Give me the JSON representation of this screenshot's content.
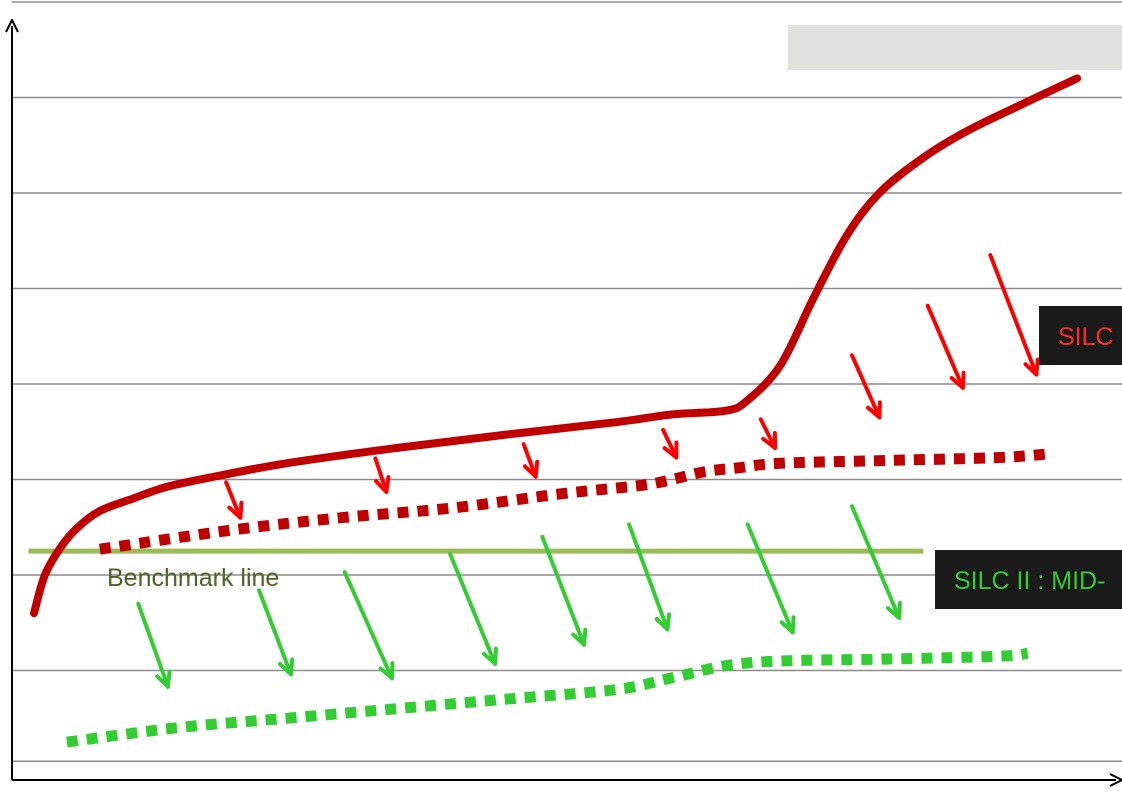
{
  "chart_data": {
    "type": "line",
    "title": "",
    "xlabel": "",
    "ylabel": "",
    "xlim": [
      0,
      100
    ],
    "ylim": [
      0,
      8
    ],
    "grid": true,
    "gridlines_y": [
      0.05,
      1,
      2,
      3,
      4,
      5,
      6,
      7,
      8
    ],
    "benchmark": {
      "label": "Benchmark line",
      "value": 2.25,
      "x_range": [
        1.5,
        83
      ],
      "color": "#9bbb59"
    },
    "series": [
      {
        "name": "",
        "style": "solid",
        "color": "#c00000",
        "points": [
          [
            2,
            1.6
          ],
          [
            3,
            2.0
          ],
          [
            4.5,
            2.3
          ],
          [
            6,
            2.5
          ],
          [
            8,
            2.67
          ],
          [
            11,
            2.8
          ],
          [
            14,
            2.92
          ],
          [
            18,
            3.02
          ],
          [
            25,
            3.17
          ],
          [
            35,
            3.33
          ],
          [
            45,
            3.47
          ],
          [
            55,
            3.6
          ],
          [
            60,
            3.68
          ],
          [
            65,
            3.72
          ],
          [
            67,
            3.83
          ],
          [
            70,
            4.2
          ],
          [
            73,
            4.9
          ],
          [
            76,
            5.55
          ],
          [
            79,
            6.0
          ],
          [
            83,
            6.37
          ],
          [
            87,
            6.65
          ],
          [
            92,
            6.93
          ],
          [
            97,
            7.2
          ]
        ]
      },
      {
        "name": "",
        "style": "dotted",
        "color": "#c00000",
        "points": [
          [
            8,
            2.27
          ],
          [
            20,
            2.47
          ],
          [
            30,
            2.6
          ],
          [
            40,
            2.7
          ],
          [
            50,
            2.85
          ],
          [
            58,
            2.95
          ],
          [
            63,
            3.08
          ],
          [
            66,
            3.12
          ],
          [
            70,
            3.17
          ],
          [
            80,
            3.2
          ],
          [
            90,
            3.23
          ],
          [
            94.5,
            3.27
          ]
        ]
      },
      {
        "name": "",
        "style": "dotted",
        "color": "#33cc33",
        "points": [
          [
            5,
            0.25
          ],
          [
            15,
            0.4
          ],
          [
            25,
            0.5
          ],
          [
            35,
            0.6
          ],
          [
            45,
            0.7
          ],
          [
            55,
            0.8
          ],
          [
            60,
            0.92
          ],
          [
            65,
            1.05
          ],
          [
            70,
            1.1
          ],
          [
            80,
            1.12
          ],
          [
            90,
            1.15
          ],
          [
            92.5,
            1.18
          ]
        ]
      }
    ],
    "arrows": [
      {
        "color": "#ff0000",
        "from": [
          19.5,
          2.97
        ],
        "to": [
          20.8,
          2.6
        ]
      },
      {
        "color": "#ff0000",
        "from": [
          33.1,
          3.22
        ],
        "to": [
          34.1,
          2.87
        ]
      },
      {
        "color": "#ff0000",
        "from": [
          46.6,
          3.37
        ],
        "to": [
          47.7,
          3.03
        ]
      },
      {
        "color": "#ff0000",
        "from": [
          59.3,
          3.52
        ],
        "to": [
          60.5,
          3.23
        ]
      },
      {
        "color": "#ff0000",
        "from": [
          68.2,
          3.63
        ],
        "to": [
          69.5,
          3.33
        ]
      },
      {
        "color": "#ff0000",
        "from": [
          76.5,
          4.3
        ],
        "to": [
          79,
          3.65
        ]
      },
      {
        "color": "#ff0000",
        "from": [
          83.4,
          4.82
        ],
        "to": [
          86.6,
          3.96
        ]
      },
      {
        "color": "#ff0000",
        "from": [
          89.1,
          5.35
        ],
        "to": [
          93.3,
          4.1
        ]
      },
      {
        "color": "#33cc33",
        "from": [
          11.5,
          1.7
        ],
        "to": [
          14.2,
          0.83
        ]
      },
      {
        "color": "#33cc33",
        "from": [
          22.5,
          1.84
        ],
        "to": [
          25.4,
          0.96
        ]
      },
      {
        "color": "#33cc33",
        "from": [
          30.3,
          2.03
        ],
        "to": [
          34.6,
          0.92
        ]
      },
      {
        "color": "#33cc33",
        "from": [
          39.9,
          2.22
        ],
        "to": [
          44,
          1.07
        ]
      },
      {
        "color": "#33cc33",
        "from": [
          48.3,
          2.4
        ],
        "to": [
          52.1,
          1.27
        ]
      },
      {
        "color": "#33cc33",
        "from": [
          56.2,
          2.53
        ],
        "to": [
          59.7,
          1.43
        ]
      },
      {
        "color": "#33cc33",
        "from": [
          67,
          2.53
        ],
        "to": [
          71.1,
          1.4
        ]
      },
      {
        "color": "#33cc33",
        "from": [
          76.5,
          2.72
        ],
        "to": [
          80.8,
          1.55
        ]
      }
    ],
    "annotations": [
      {
        "text": "SILC",
        "background": "#1a1a1a",
        "color": "#ff2a2a"
      },
      {
        "text": "SILC II : MID-",
        "background": "#1a1a1a",
        "color": "#33cc33"
      }
    ],
    "legend_box": {
      "text": "",
      "background": "#e0e0dc",
      "placement": "top-right"
    }
  }
}
